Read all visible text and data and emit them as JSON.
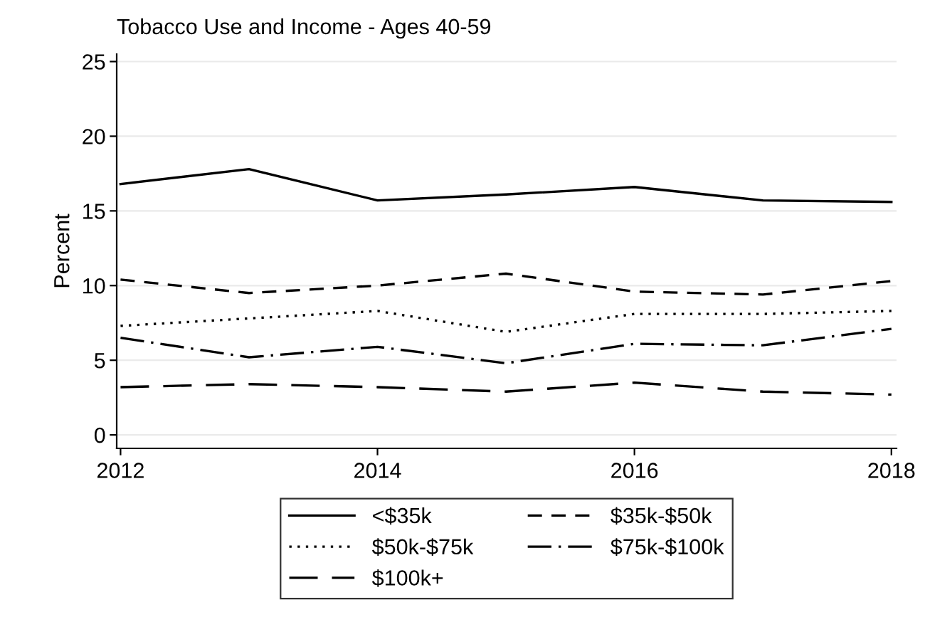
{
  "chart_data": {
    "type": "line",
    "title": "Tobacco Use and Income - Ages 40-59",
    "ylabel": "Percent",
    "x": [
      2012,
      2013,
      2014,
      2015,
      2016,
      2017,
      2018
    ],
    "series": [
      {
        "name": "<$35k",
        "color": "#000000",
        "line_style": "solid",
        "values": [
          16.8,
          17.8,
          15.7,
          16.1,
          16.6,
          15.7,
          15.6
        ]
      },
      {
        "name": "$35k-$50k",
        "color": "#000000",
        "line_style": "dashed",
        "values": [
          10.4,
          9.5,
          10.0,
          10.8,
          9.6,
          9.4,
          10.3
        ]
      },
      {
        "name": "$50k-$75k",
        "color": "#000000",
        "line_style": "dotted",
        "values": [
          7.3,
          7.8,
          8.3,
          6.9,
          8.1,
          8.1,
          8.3
        ]
      },
      {
        "name": "$75k-$100k",
        "color": "#000000",
        "line_style": "dashdot",
        "values": [
          6.5,
          5.2,
          5.9,
          4.8,
          6.1,
          6.0,
          7.1
        ]
      },
      {
        "name": "$100k+",
        "color": "#000000",
        "line_style": "longdash",
        "values": [
          3.2,
          3.4,
          3.2,
          2.9,
          3.5,
          2.9,
          2.7
        ]
      }
    ],
    "xlim": [
      2011.97,
      2018.04
    ],
    "xticks": [
      2012,
      2014,
      2016,
      2018
    ],
    "ylim": [
      -0.9,
      25.5
    ],
    "yticks": [
      0,
      5,
      10,
      15,
      20,
      25
    ],
    "grid": "y",
    "legend": "bottom",
    "marker": "none"
  }
}
